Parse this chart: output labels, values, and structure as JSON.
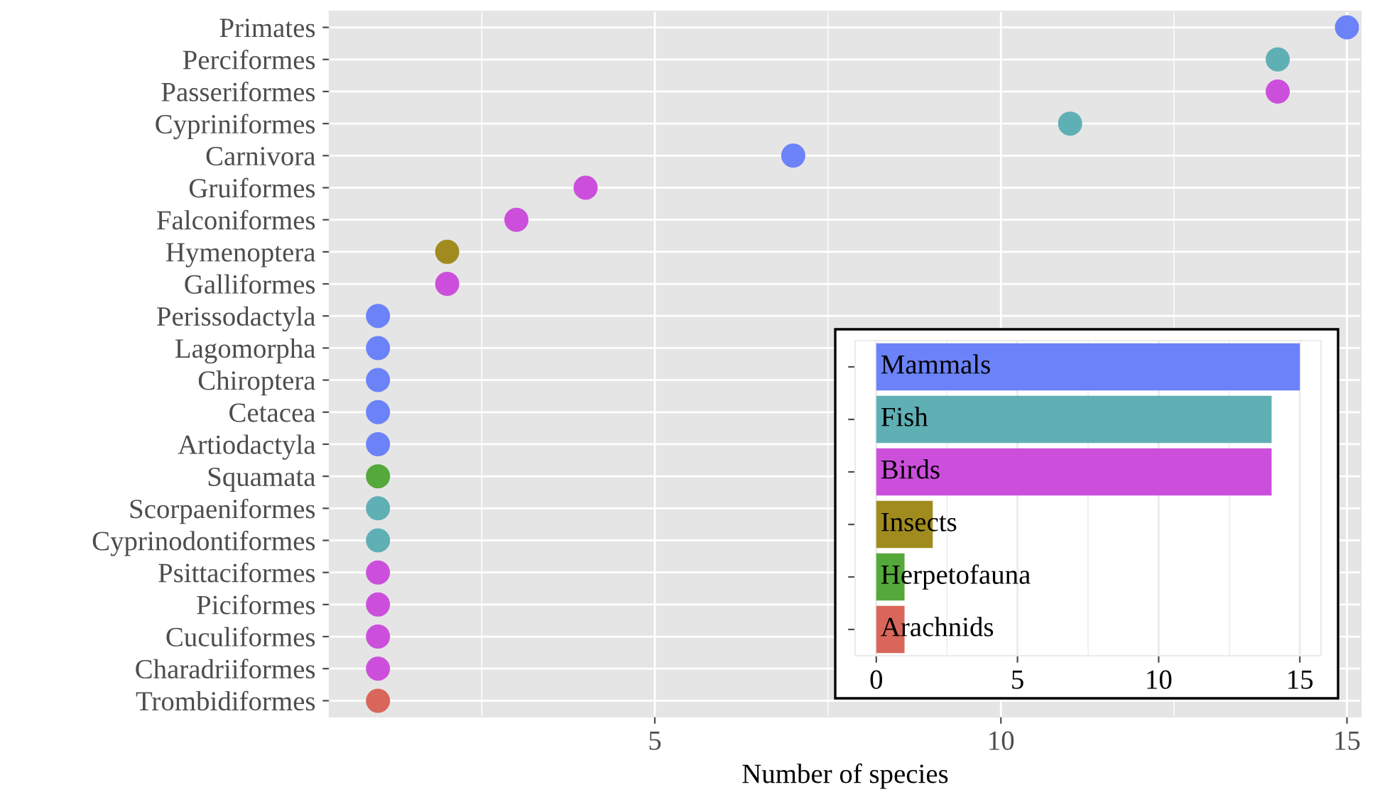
{
  "chart_data": [
    {
      "type": "scatter",
      "orientation": "horizontal",
      "marker": "circle",
      "grid": true,
      "xlabel": "Number of species",
      "categories": [
        "Primates",
        "Perciformes",
        "Passeriformes",
        "Cypriniformes",
        "Carnivora",
        "Gruiformes",
        "Falconiformes",
        "Hymenoptera",
        "Galliformes",
        "Perissodactyla",
        "Lagomorpha",
        "Chiroptera",
        "Cetacea",
        "Artiodactyla",
        "Squamata",
        "Scorpaeniformes",
        "Cyprinodontiformes",
        "Psittaciformes",
        "Piciformes",
        "Cuculiformes",
        "Charadriiformes",
        "Trombidiformes"
      ],
      "values": [
        15,
        14,
        14,
        11,
        7,
        4,
        3,
        2,
        2,
        1,
        1,
        1,
        1,
        1,
        1,
        1,
        1,
        1,
        1,
        1,
        1,
        1
      ],
      "colors": [
        "#6b82f8",
        "#5fb0b5",
        "#cc4fdc",
        "#5fb0b5",
        "#6b82f8",
        "#cc4fdc",
        "#cc4fdc",
        "#a08c1e",
        "#cc4fdc",
        "#6b82f8",
        "#6b82f8",
        "#6b82f8",
        "#6b82f8",
        "#6b82f8",
        "#55a83a",
        "#5fb0b5",
        "#5fb0b5",
        "#cc4fdc",
        "#cc4fdc",
        "#cc4fdc",
        "#cc4fdc",
        "#d9665a"
      ],
      "xlim": [
        0.3,
        15.2
      ],
      "xticks": [
        {
          "value": 2.5,
          "label": null
        },
        5,
        {
          "value": 7.5,
          "label": null
        },
        10,
        {
          "value": 12.5,
          "label": null
        },
        15
      ]
    },
    {
      "type": "bar",
      "orientation": "horizontal",
      "grid": true,
      "categories": [
        "Mammals",
        "Fish",
        "Birds",
        "Insects",
        "Herpetofauna",
        "Arachnids"
      ],
      "values": [
        15,
        14,
        14,
        2,
        1,
        1
      ],
      "colors": [
        "#6b82f8",
        "#5fb0b5",
        "#cc4fdc",
        "#a08c1e",
        "#55a83a",
        "#d9665a"
      ],
      "xlim": [
        -0.75,
        15.75
      ],
      "xticks": [
        0,
        {
          "value": 2.5,
          "label": null
        },
        5,
        {
          "value": 7.5,
          "label": null
        },
        10,
        {
          "value": 12.5,
          "label": null
        },
        15
      ]
    }
  ]
}
